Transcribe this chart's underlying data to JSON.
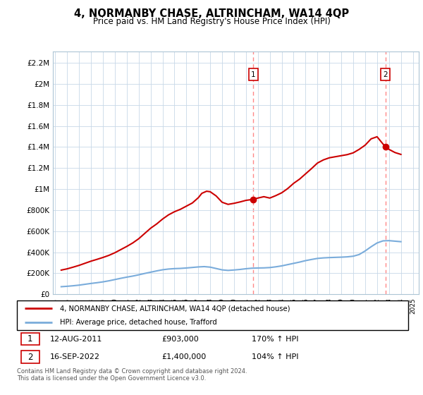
{
  "title": "4, NORMANBY CHASE, ALTRINCHAM, WA14 4QP",
  "subtitle": "Price paid vs. HM Land Registry's House Price Index (HPI)",
  "ylabel_ticks": [
    "£0",
    "£200K",
    "£400K",
    "£600K",
    "£800K",
    "£1M",
    "£1.2M",
    "£1.4M",
    "£1.6M",
    "£1.8M",
    "£2M",
    "£2.2M"
  ],
  "ytick_values": [
    0,
    200000,
    400000,
    600000,
    800000,
    1000000,
    1200000,
    1400000,
    1600000,
    1800000,
    2000000,
    2200000
  ],
  "ylim": [
    0,
    2310000
  ],
  "xlim_start": 1994.8,
  "xlim_end": 2025.5,
  "transaction1_date": 2011.617,
  "transaction1_price": 903000,
  "transaction1_label": "1",
  "transaction2_date": 2022.708,
  "transaction2_price": 1400000,
  "transaction2_label": "2",
  "legend_line1": "4, NORMANBY CHASE, ALTRINCHAM, WA14 4QP (detached house)",
  "legend_line2": "HPI: Average price, detached house, Trafford",
  "red_color": "#cc0000",
  "blue_color": "#7aacdb",
  "dashed_color": "#ff8888",
  "footnote": "Contains HM Land Registry data © Crown copyright and database right 2024.\nThis data is licensed under the Open Government Licence v3.0.",
  "red_x": [
    1995.5,
    1996.0,
    1996.5,
    1997.0,
    1997.5,
    1998.0,
    1998.5,
    1999.0,
    1999.5,
    2000.0,
    2000.5,
    2001.0,
    2001.5,
    2002.0,
    2002.5,
    2003.0,
    2003.5,
    2004.0,
    2004.5,
    2005.0,
    2005.5,
    2006.0,
    2006.5,
    2007.0,
    2007.3,
    2007.7,
    2008.0,
    2008.5,
    2009.0,
    2009.5,
    2010.0,
    2010.5,
    2011.0,
    2011.617,
    2012.0,
    2012.5,
    2013.0,
    2013.5,
    2014.0,
    2014.5,
    2015.0,
    2015.5,
    2016.0,
    2016.5,
    2017.0,
    2017.5,
    2018.0,
    2018.5,
    2019.0,
    2019.5,
    2020.0,
    2020.5,
    2021.0,
    2021.5,
    2022.0,
    2022.708,
    2023.0,
    2023.5,
    2024.0
  ],
  "red_y": [
    230000,
    242000,
    258000,
    275000,
    295000,
    315000,
    332000,
    350000,
    370000,
    395000,
    425000,
    455000,
    488000,
    528000,
    578000,
    628000,
    668000,
    715000,
    755000,
    785000,
    808000,
    838000,
    868000,
    918000,
    960000,
    980000,
    975000,
    935000,
    875000,
    855000,
    865000,
    878000,
    893000,
    903000,
    915000,
    928000,
    915000,
    938000,
    965000,
    1005000,
    1055000,
    1095000,
    1145000,
    1195000,
    1248000,
    1278000,
    1298000,
    1308000,
    1318000,
    1328000,
    1345000,
    1378000,
    1418000,
    1478000,
    1498000,
    1400000,
    1378000,
    1348000,
    1330000
  ],
  "blue_x": [
    1995.5,
    1996.0,
    1996.5,
    1997.0,
    1997.5,
    1998.0,
    1998.5,
    1999.0,
    1999.5,
    2000.0,
    2000.5,
    2001.0,
    2001.5,
    2002.0,
    2002.5,
    2003.0,
    2003.5,
    2004.0,
    2004.5,
    2005.0,
    2005.5,
    2006.0,
    2006.5,
    2007.0,
    2007.5,
    2008.0,
    2008.5,
    2009.0,
    2009.5,
    2010.0,
    2010.5,
    2011.0,
    2011.5,
    2012.0,
    2012.5,
    2013.0,
    2013.5,
    2014.0,
    2014.5,
    2015.0,
    2015.5,
    2016.0,
    2016.5,
    2017.0,
    2017.5,
    2018.0,
    2018.5,
    2019.0,
    2019.5,
    2020.0,
    2020.5,
    2021.0,
    2021.5,
    2022.0,
    2022.5,
    2023.0,
    2023.5,
    2024.0
  ],
  "blue_y": [
    72000,
    76000,
    81000,
    87000,
    95000,
    103000,
    110000,
    118000,
    128000,
    140000,
    152000,
    163000,
    173000,
    185000,
    198000,
    210000,
    222000,
    233000,
    240000,
    244000,
    246000,
    250000,
    255000,
    260000,
    263000,
    258000,
    245000,
    232000,
    227000,
    231000,
    236000,
    243000,
    248000,
    250000,
    251000,
    254000,
    261000,
    270000,
    282000,
    294000,
    306000,
    320000,
    331000,
    341000,
    346000,
    349000,
    351000,
    353000,
    356000,
    362000,
    378000,
    412000,
    452000,
    488000,
    508000,
    510000,
    505000,
    500000
  ]
}
